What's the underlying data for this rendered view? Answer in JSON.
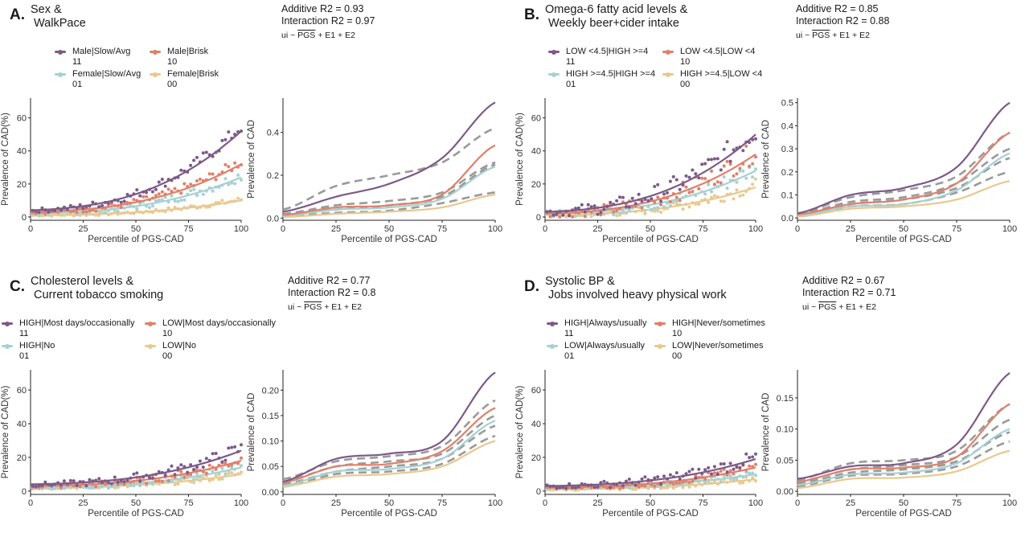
{
  "colors": {
    "11": "#7c5a87",
    "10": "#e0806a",
    "01": "#a6d1d1",
    "00": "#e9c88f",
    "dashed": "#9a9a9a"
  },
  "panels": [
    {
      "letter": "A.",
      "title": "Sex &\n WalkPace",
      "additive": "Additive R2 = 0.93",
      "interaction": "Interaction R2 = 0.97",
      "legend": [
        {
          "label": "Male|Slow/Avg",
          "code": "11"
        },
        {
          "label": "Male|Brisk",
          "code": "10"
        },
        {
          "label": "Female|Slow/Avg",
          "code": "01"
        },
        {
          "label": "Female|Brisk",
          "code": "00"
        }
      ]
    },
    {
      "letter": "B.",
      "title": "Omega-6 fatty acid levels &\n Weekly beer+cider intake",
      "additive": "Additive R2 = 0.85",
      "interaction": "Interaction R2 = 0.88",
      "legend": [
        {
          "label": "LOW <4.5|HIGH >=4",
          "code": "11"
        },
        {
          "label": "LOW <4.5|LOW <4",
          "code": "10"
        },
        {
          "label": "HIGH >=4.5|HIGH >=4",
          "code": "01"
        },
        {
          "label": "HIGH >=4.5|LOW <4",
          "code": "00"
        }
      ]
    },
    {
      "letter": "C.",
      "title": "Cholesterol levels &\n Current tobacco smoking",
      "additive": "Additive R2 = 0.77",
      "interaction": "Interaction R2 = 0.8",
      "legend": [
        {
          "label": "HIGH|Most days/occasionally",
          "code": "11"
        },
        {
          "label": "LOW|Most days/occasionally",
          "code": "10"
        },
        {
          "label": "HIGH|No",
          "code": "01"
        },
        {
          "label": "LOW|No",
          "code": "00"
        }
      ]
    },
    {
      "letter": "D.",
      "title": "Systolic BP &\n Jobs involved heavy physical work",
      "additive": "Additive R2 = 0.67",
      "interaction": "Interaction R2 = 0.71",
      "legend": [
        {
          "label": "HIGH|Always/usually",
          "code": "11"
        },
        {
          "label": "HIGH|Never/sometimes",
          "code": "10"
        },
        {
          "label": "LOW|Always/usually",
          "code": "01"
        },
        {
          "label": "LOW|Never/sometimes",
          "code": "00"
        }
      ]
    }
  ],
  "formula": {
    "prefix": "ui ~ ",
    "overline": "PGS",
    "suffix": " + E1 + E2"
  },
  "chart_data": [
    {
      "panel": "A",
      "type": "scatter",
      "xlabel": "Percentile of PGS-CAD",
      "ylabel": "Prevalence of CAD(%)",
      "xlim": [
        0,
        100
      ],
      "ylim": [
        -2,
        72
      ],
      "xticks": [
        0,
        25,
        50,
        75,
        100
      ],
      "yticks": [
        0,
        20,
        40,
        60
      ],
      "series": [
        {
          "name": "11",
          "start": 4,
          "end": 52,
          "noise": 3
        },
        {
          "name": "10",
          "start": 3,
          "end": 32,
          "noise": 2.5
        },
        {
          "name": "01",
          "start": 2,
          "end": 24,
          "noise": 2.5
        },
        {
          "name": "00",
          "start": 1,
          "end": 10,
          "noise": 1.2
        }
      ]
    },
    {
      "panel": "A",
      "type": "line",
      "xlabel": "Percentile of PGS-CAD",
      "ylabel": "Prevalence of CAD",
      "xlim": [
        0,
        100
      ],
      "ylim": [
        -0.01,
        0.56
      ],
      "xticks": [
        0,
        25,
        50,
        75,
        100
      ],
      "yticks": [
        0.0,
        0.2,
        0.4
      ],
      "series": [
        {
          "name": "11",
          "y": [
            0.03,
            0.1,
            0.16,
            0.28,
            0.54
          ]
        },
        {
          "name": "10",
          "y": [
            0.015,
            0.05,
            0.06,
            0.11,
            0.34
          ]
        },
        {
          "name": "01",
          "y": [
            0.01,
            0.04,
            0.05,
            0.09,
            0.24
          ]
        },
        {
          "name": "00",
          "y": [
            0.005,
            0.02,
            0.03,
            0.05,
            0.11
          ]
        }
      ],
      "dashed": [
        {
          "y": [
            0.04,
            0.15,
            0.2,
            0.26,
            0.42
          ]
        },
        {
          "y": [
            0.02,
            0.06,
            0.08,
            0.12,
            0.26
          ]
        },
        {
          "y": [
            0.015,
            0.04,
            0.06,
            0.1,
            0.25
          ]
        },
        {
          "y": [
            0.008,
            0.025,
            0.035,
            0.07,
            0.12
          ]
        }
      ]
    },
    {
      "panel": "B",
      "type": "scatter",
      "xlabel": "Percentile of PGS-CAD",
      "ylabel": "Prevalence of CAD(%)",
      "xlim": [
        0,
        100
      ],
      "ylim": [
        -2,
        72
      ],
      "xticks": [
        0,
        25,
        50,
        75,
        100
      ],
      "yticks": [
        0,
        20,
        40,
        60
      ],
      "series": [
        {
          "name": "11",
          "start": 3,
          "end": 50,
          "noise": 6
        },
        {
          "name": "10",
          "start": 2,
          "end": 38,
          "noise": 5
        },
        {
          "name": "01",
          "start": 2,
          "end": 28,
          "noise": 4
        },
        {
          "name": "00",
          "start": 1,
          "end": 18,
          "noise": 3
        }
      ]
    },
    {
      "panel": "B",
      "type": "line",
      "xlabel": "Percentile of PGS-CAD",
      "ylabel": "Prevalence of CAD",
      "xlim": [
        0,
        100
      ],
      "ylim": [
        -0.01,
        0.52
      ],
      "xticks": [
        0,
        25,
        50,
        75,
        100
      ],
      "yticks": [
        0.0,
        0.1,
        0.2,
        0.3,
        0.4,
        0.5
      ],
      "series": [
        {
          "name": "11",
          "y": [
            0.02,
            0.1,
            0.13,
            0.22,
            0.5
          ]
        },
        {
          "name": "10",
          "y": [
            0.015,
            0.06,
            0.08,
            0.15,
            0.37
          ]
        },
        {
          "name": "01",
          "y": [
            0.01,
            0.05,
            0.06,
            0.12,
            0.28
          ]
        },
        {
          "name": "00",
          "y": [
            0.005,
            0.04,
            0.05,
            0.08,
            0.16
          ]
        }
      ],
      "dashed": [
        {
          "y": [
            0.02,
            0.09,
            0.12,
            0.18,
            0.37
          ]
        },
        {
          "y": [
            0.015,
            0.07,
            0.09,
            0.15,
            0.3
          ]
        },
        {
          "y": [
            0.01,
            0.06,
            0.08,
            0.13,
            0.26
          ]
        },
        {
          "y": [
            0.008,
            0.05,
            0.06,
            0.11,
            0.2
          ]
        }
      ]
    },
    {
      "panel": "C",
      "type": "scatter",
      "xlabel": "Percentile of PGS-CAD",
      "ylabel": "Prevalence of CAD(%)",
      "xlim": [
        0,
        100
      ],
      "ylim": [
        -2,
        72
      ],
      "xticks": [
        0,
        25,
        50,
        75,
        100
      ],
      "yticks": [
        0,
        20,
        40,
        60
      ],
      "series": [
        {
          "name": "11",
          "start": 4,
          "end": 24,
          "noise": 3
        },
        {
          "name": "10",
          "start": 3,
          "end": 18,
          "noise": 2.5
        },
        {
          "name": "01",
          "start": 2,
          "end": 14,
          "noise": 2
        },
        {
          "name": "00",
          "start": 2,
          "end": 10,
          "noise": 1.5
        }
      ]
    },
    {
      "panel": "C",
      "type": "line",
      "xlabel": "Percentile of PGS-CAD",
      "ylabel": "Prevalence of CAD",
      "xlim": [
        0,
        100
      ],
      "ylim": [
        -0.005,
        0.24
      ],
      "xticks": [
        0,
        25,
        50,
        75,
        100
      ],
      "yticks": [
        0.0,
        0.05,
        0.1,
        0.15,
        0.2
      ],
      "series": [
        {
          "name": "11",
          "y": [
            0.02,
            0.065,
            0.075,
            0.1,
            0.235
          ]
        },
        {
          "name": "10",
          "y": [
            0.018,
            0.05,
            0.055,
            0.08,
            0.165
          ]
        },
        {
          "name": "01",
          "y": [
            0.012,
            0.04,
            0.045,
            0.065,
            0.14
          ]
        },
        {
          "name": "00",
          "y": [
            0.01,
            0.03,
            0.035,
            0.05,
            0.1
          ]
        }
      ],
      "dashed": [
        {
          "y": [
            0.025,
            0.06,
            0.07,
            0.09,
            0.18
          ]
        },
        {
          "y": [
            0.02,
            0.05,
            0.06,
            0.075,
            0.15
          ]
        },
        {
          "y": [
            0.015,
            0.04,
            0.05,
            0.065,
            0.13
          ]
        },
        {
          "y": [
            0.01,
            0.035,
            0.04,
            0.055,
            0.11
          ]
        }
      ]
    },
    {
      "panel": "D",
      "type": "scatter",
      "xlabel": "Percentile of PGS-CAD",
      "ylabel": "Prevalence of CAD(%)",
      "xlim": [
        0,
        100
      ],
      "ylim": [
        -2,
        72
      ],
      "xticks": [
        0,
        25,
        50,
        75,
        100
      ],
      "yticks": [
        0,
        20,
        40,
        60
      ],
      "series": [
        {
          "name": "11",
          "start": 3,
          "end": 19,
          "noise": 3
        },
        {
          "name": "10",
          "start": 2,
          "end": 14,
          "noise": 2
        },
        {
          "name": "01",
          "start": 2,
          "end": 10,
          "noise": 1.5
        },
        {
          "name": "00",
          "start": 1,
          "end": 7,
          "noise": 1.2
        }
      ]
    },
    {
      "panel": "D",
      "type": "line",
      "xlabel": "Percentile of PGS-CAD",
      "ylabel": "Prevalence of CAD",
      "xlim": [
        0,
        100
      ],
      "ylim": [
        -0.005,
        0.195
      ],
      "xticks": [
        0,
        25,
        50,
        75,
        100
      ],
      "yticks": [
        0.0,
        0.05,
        0.1,
        0.15
      ],
      "series": [
        {
          "name": "11",
          "y": [
            0.02,
            0.04,
            0.045,
            0.075,
            0.19
          ]
        },
        {
          "name": "10",
          "y": [
            0.015,
            0.035,
            0.038,
            0.055,
            0.14
          ]
        },
        {
          "name": "01",
          "y": [
            0.01,
            0.027,
            0.03,
            0.045,
            0.1
          ]
        },
        {
          "name": "00",
          "y": [
            0.005,
            0.02,
            0.022,
            0.032,
            0.065
          ]
        }
      ],
      "dashed": [
        {
          "y": [
            0.018,
            0.045,
            0.05,
            0.065,
            0.14
          ]
        },
        {
          "y": [
            0.015,
            0.035,
            0.042,
            0.055,
            0.115
          ]
        },
        {
          "y": [
            0.012,
            0.03,
            0.035,
            0.048,
            0.095
          ]
        },
        {
          "y": [
            0.008,
            0.025,
            0.028,
            0.04,
            0.08
          ]
        }
      ]
    }
  ]
}
